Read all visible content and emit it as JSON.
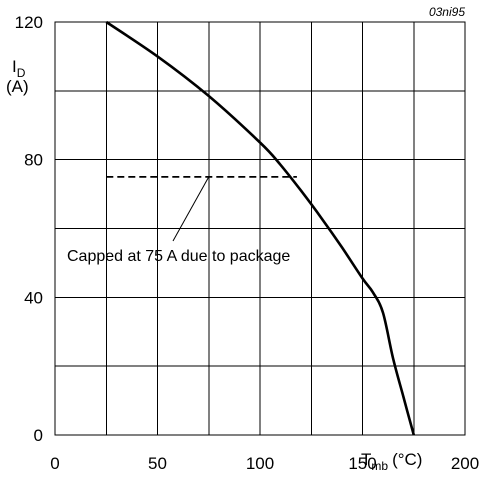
{
  "chart_data": {
    "type": "line",
    "code": "03ni95",
    "xlim": [
      0,
      200
    ],
    "ylim": [
      0,
      120
    ],
    "x_ticks": [
      0,
      50,
      100,
      150,
      200
    ],
    "y_ticks": [
      0,
      40,
      80,
      120
    ],
    "x_ticks_label": [
      "0",
      "50",
      "100",
      "150",
      "200"
    ],
    "y_ticks_label": [
      "0",
      "40",
      "80",
      "120"
    ],
    "x_grid": [
      0,
      25,
      50,
      75,
      100,
      125,
      150,
      175,
      200
    ],
    "y_grid": [
      0,
      20,
      40,
      60,
      80,
      100,
      120
    ],
    "grid": true,
    "ylabel_main": "I",
    "ylabel_sub": "D",
    "ylabel_unit": "(A)",
    "xlabel_main": "T",
    "xlabel_sub": "mb",
    "xlabel_unit": "(°C)",
    "series": [
      {
        "style": "solid",
        "x": [
          25,
          50,
          75,
          100,
          110,
          120,
          130,
          140,
          150,
          155,
          160,
          165,
          170,
          175
        ],
        "y": [
          120,
          110,
          98.5,
          85,
          78.5,
          71,
          63,
          54.5,
          45.5,
          41.5,
          35.5,
          22,
          11,
          0
        ]
      },
      {
        "style": "dashed",
        "x": [
          25,
          118
        ],
        "y": [
          75,
          75
        ]
      }
    ],
    "annotation": {
      "text": "Capped at 75 A due to package",
      "point_to": [
        75,
        75
      ]
    }
  }
}
